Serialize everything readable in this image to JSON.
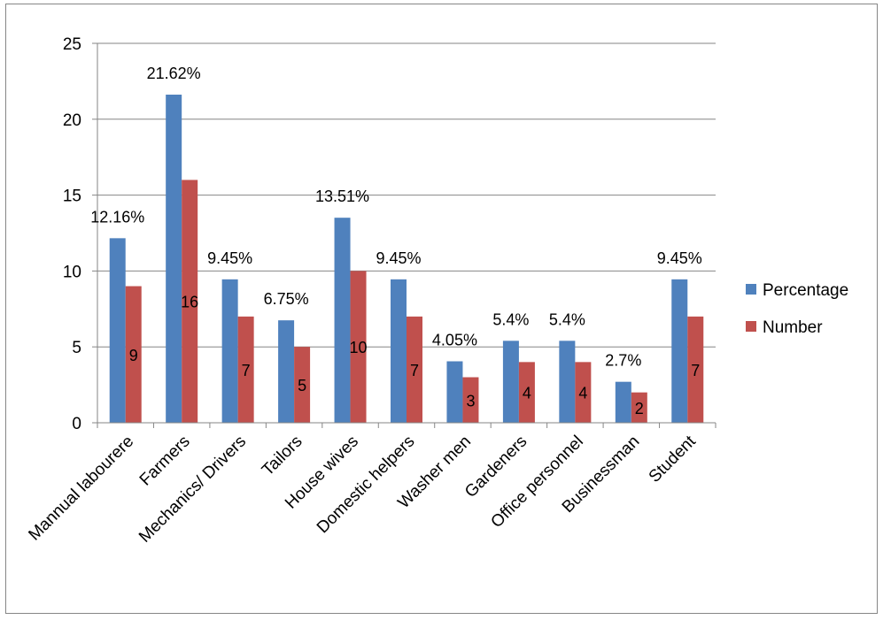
{
  "chart_data": {
    "type": "bar",
    "categories": [
      "Mannual labourere",
      "Farmers",
      "Mechanics/ Drivers",
      "Tailors",
      "House wives",
      "Domestic helpers",
      "Washer men",
      "Gardeners",
      "Office personnel",
      "Businessman",
      "Student"
    ],
    "series": [
      {
        "name": "Percentage",
        "color": "#4F81BD",
        "values": [
          12.16,
          21.62,
          9.45,
          6.75,
          13.51,
          9.45,
          4.05,
          5.4,
          5.4,
          2.7,
          9.45
        ],
        "data_labels": [
          "12.16%",
          "21.62%",
          "9.45%",
          "6.75%",
          "13.51%",
          "9.45%",
          "4.05%",
          "5.4%",
          "5.4%",
          "2.7%",
          "9.45%"
        ]
      },
      {
        "name": "Number",
        "color": "#C0504D",
        "values": [
          9,
          16,
          7,
          5,
          10,
          7,
          3,
          4,
          4,
          2,
          7
        ],
        "data_labels": [
          "9",
          "16",
          "7",
          "5",
          "10",
          "7",
          "3",
          "4",
          "4",
          "2",
          "7"
        ]
      }
    ],
    "ylim": [
      0,
      25
    ],
    "yticks": [
      "0",
      "5",
      "10",
      "15",
      "20",
      "25"
    ],
    "title": "",
    "xlabel": "",
    "ylabel": "",
    "grid": true,
    "legend_position": "right"
  }
}
